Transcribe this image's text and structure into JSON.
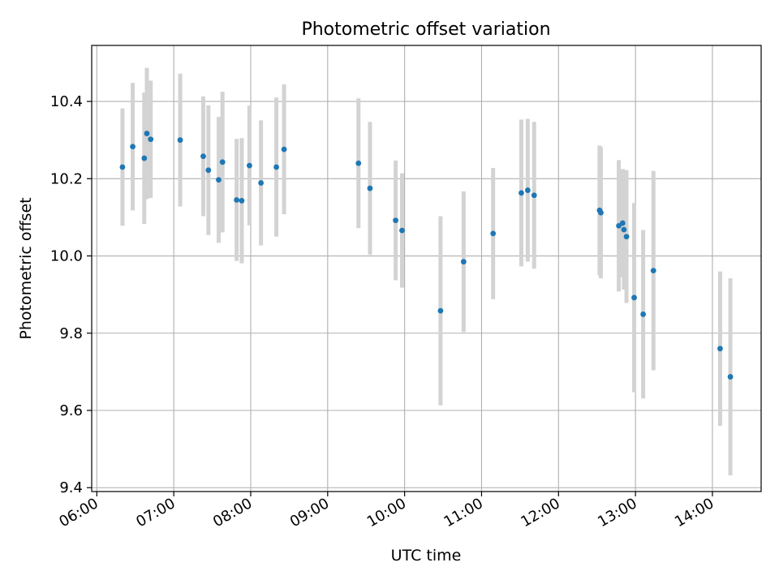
{
  "chart_data": {
    "type": "scatter",
    "title": "Photometric offset variation",
    "xlabel": "UTC time",
    "ylabel": "Photometric offset",
    "xlim": [
      "05:56",
      "14:38"
    ],
    "ylim": [
      9.39,
      10.545
    ],
    "x_ticks": [
      "06:00",
      "07:00",
      "08:00",
      "09:00",
      "10:00",
      "11:00",
      "12:00",
      "13:00",
      "14:00"
    ],
    "y_ticks": [
      9.4,
      9.6,
      9.8,
      10.0,
      10.2,
      10.4
    ],
    "grid": true,
    "colors": {
      "points": "#1f77b4",
      "errorbars": "#d3d3d3"
    },
    "series": [
      {
        "points": [
          {
            "x": "06:20",
            "y": 10.23,
            "err": 0.152
          },
          {
            "x": "06:28",
            "y": 10.283,
            "err": 0.165
          },
          {
            "x": "06:37",
            "y": 10.253,
            "err": 0.17
          },
          {
            "x": "06:39",
            "y": 10.317,
            "err": 0.17
          },
          {
            "x": "06:42",
            "y": 10.302,
            "err": 0.152
          },
          {
            "x": "07:05",
            "y": 10.3,
            "err": 0.172
          },
          {
            "x": "07:23",
            "y": 10.258,
            "err": 0.155
          },
          {
            "x": "07:27",
            "y": 10.222,
            "err": 0.168
          },
          {
            "x": "07:35",
            "y": 10.197,
            "err": 0.163
          },
          {
            "x": "07:38",
            "y": 10.243,
            "err": 0.182
          },
          {
            "x": "07:49",
            "y": 10.145,
            "err": 0.158
          },
          {
            "x": "07:53",
            "y": 10.143,
            "err": 0.162
          },
          {
            "x": "07:59",
            "y": 10.234,
            "err": 0.155
          },
          {
            "x": "08:08",
            "y": 10.189,
            "err": 0.162
          },
          {
            "x": "08:20",
            "y": 10.23,
            "err": 0.18
          },
          {
            "x": "08:26",
            "y": 10.276,
            "err": 0.168
          },
          {
            "x": "09:24",
            "y": 10.24,
            "err": 0.168
          },
          {
            "x": "09:33",
            "y": 10.175,
            "err": 0.172
          },
          {
            "x": "09:53",
            "y": 10.092,
            "err": 0.155
          },
          {
            "x": "09:58",
            "y": 10.066,
            "err": 0.148
          },
          {
            "x": "10:28",
            "y": 9.858,
            "err": 0.245
          },
          {
            "x": "10:46",
            "y": 9.985,
            "err": 0.182
          },
          {
            "x": "11:09",
            "y": 10.058,
            "err": 0.17
          },
          {
            "x": "11:31",
            "y": 10.163,
            "err": 0.19
          },
          {
            "x": "11:36",
            "y": 10.17,
            "err": 0.185
          },
          {
            "x": "11:41",
            "y": 10.157,
            "err": 0.19
          },
          {
            "x": "12:32",
            "y": 10.118,
            "err": 0.168
          },
          {
            "x": "12:33",
            "y": 10.112,
            "err": 0.17
          },
          {
            "x": "12:47",
            "y": 10.078,
            "err": 0.17
          },
          {
            "x": "12:50",
            "y": 10.085,
            "err": 0.14
          },
          {
            "x": "12:51",
            "y": 10.068,
            "err": 0.155
          },
          {
            "x": "12:53",
            "y": 10.05,
            "err": 0.172
          },
          {
            "x": "12:59",
            "y": 9.892,
            "err": 0.245
          },
          {
            "x": "13:06",
            "y": 9.849,
            "err": 0.218
          },
          {
            "x": "13:14",
            "y": 9.962,
            "err": 0.258
          },
          {
            "x": "14:06",
            "y": 9.76,
            "err": 0.2
          },
          {
            "x": "14:14",
            "y": 9.687,
            "err": 0.255
          }
        ]
      }
    ]
  }
}
